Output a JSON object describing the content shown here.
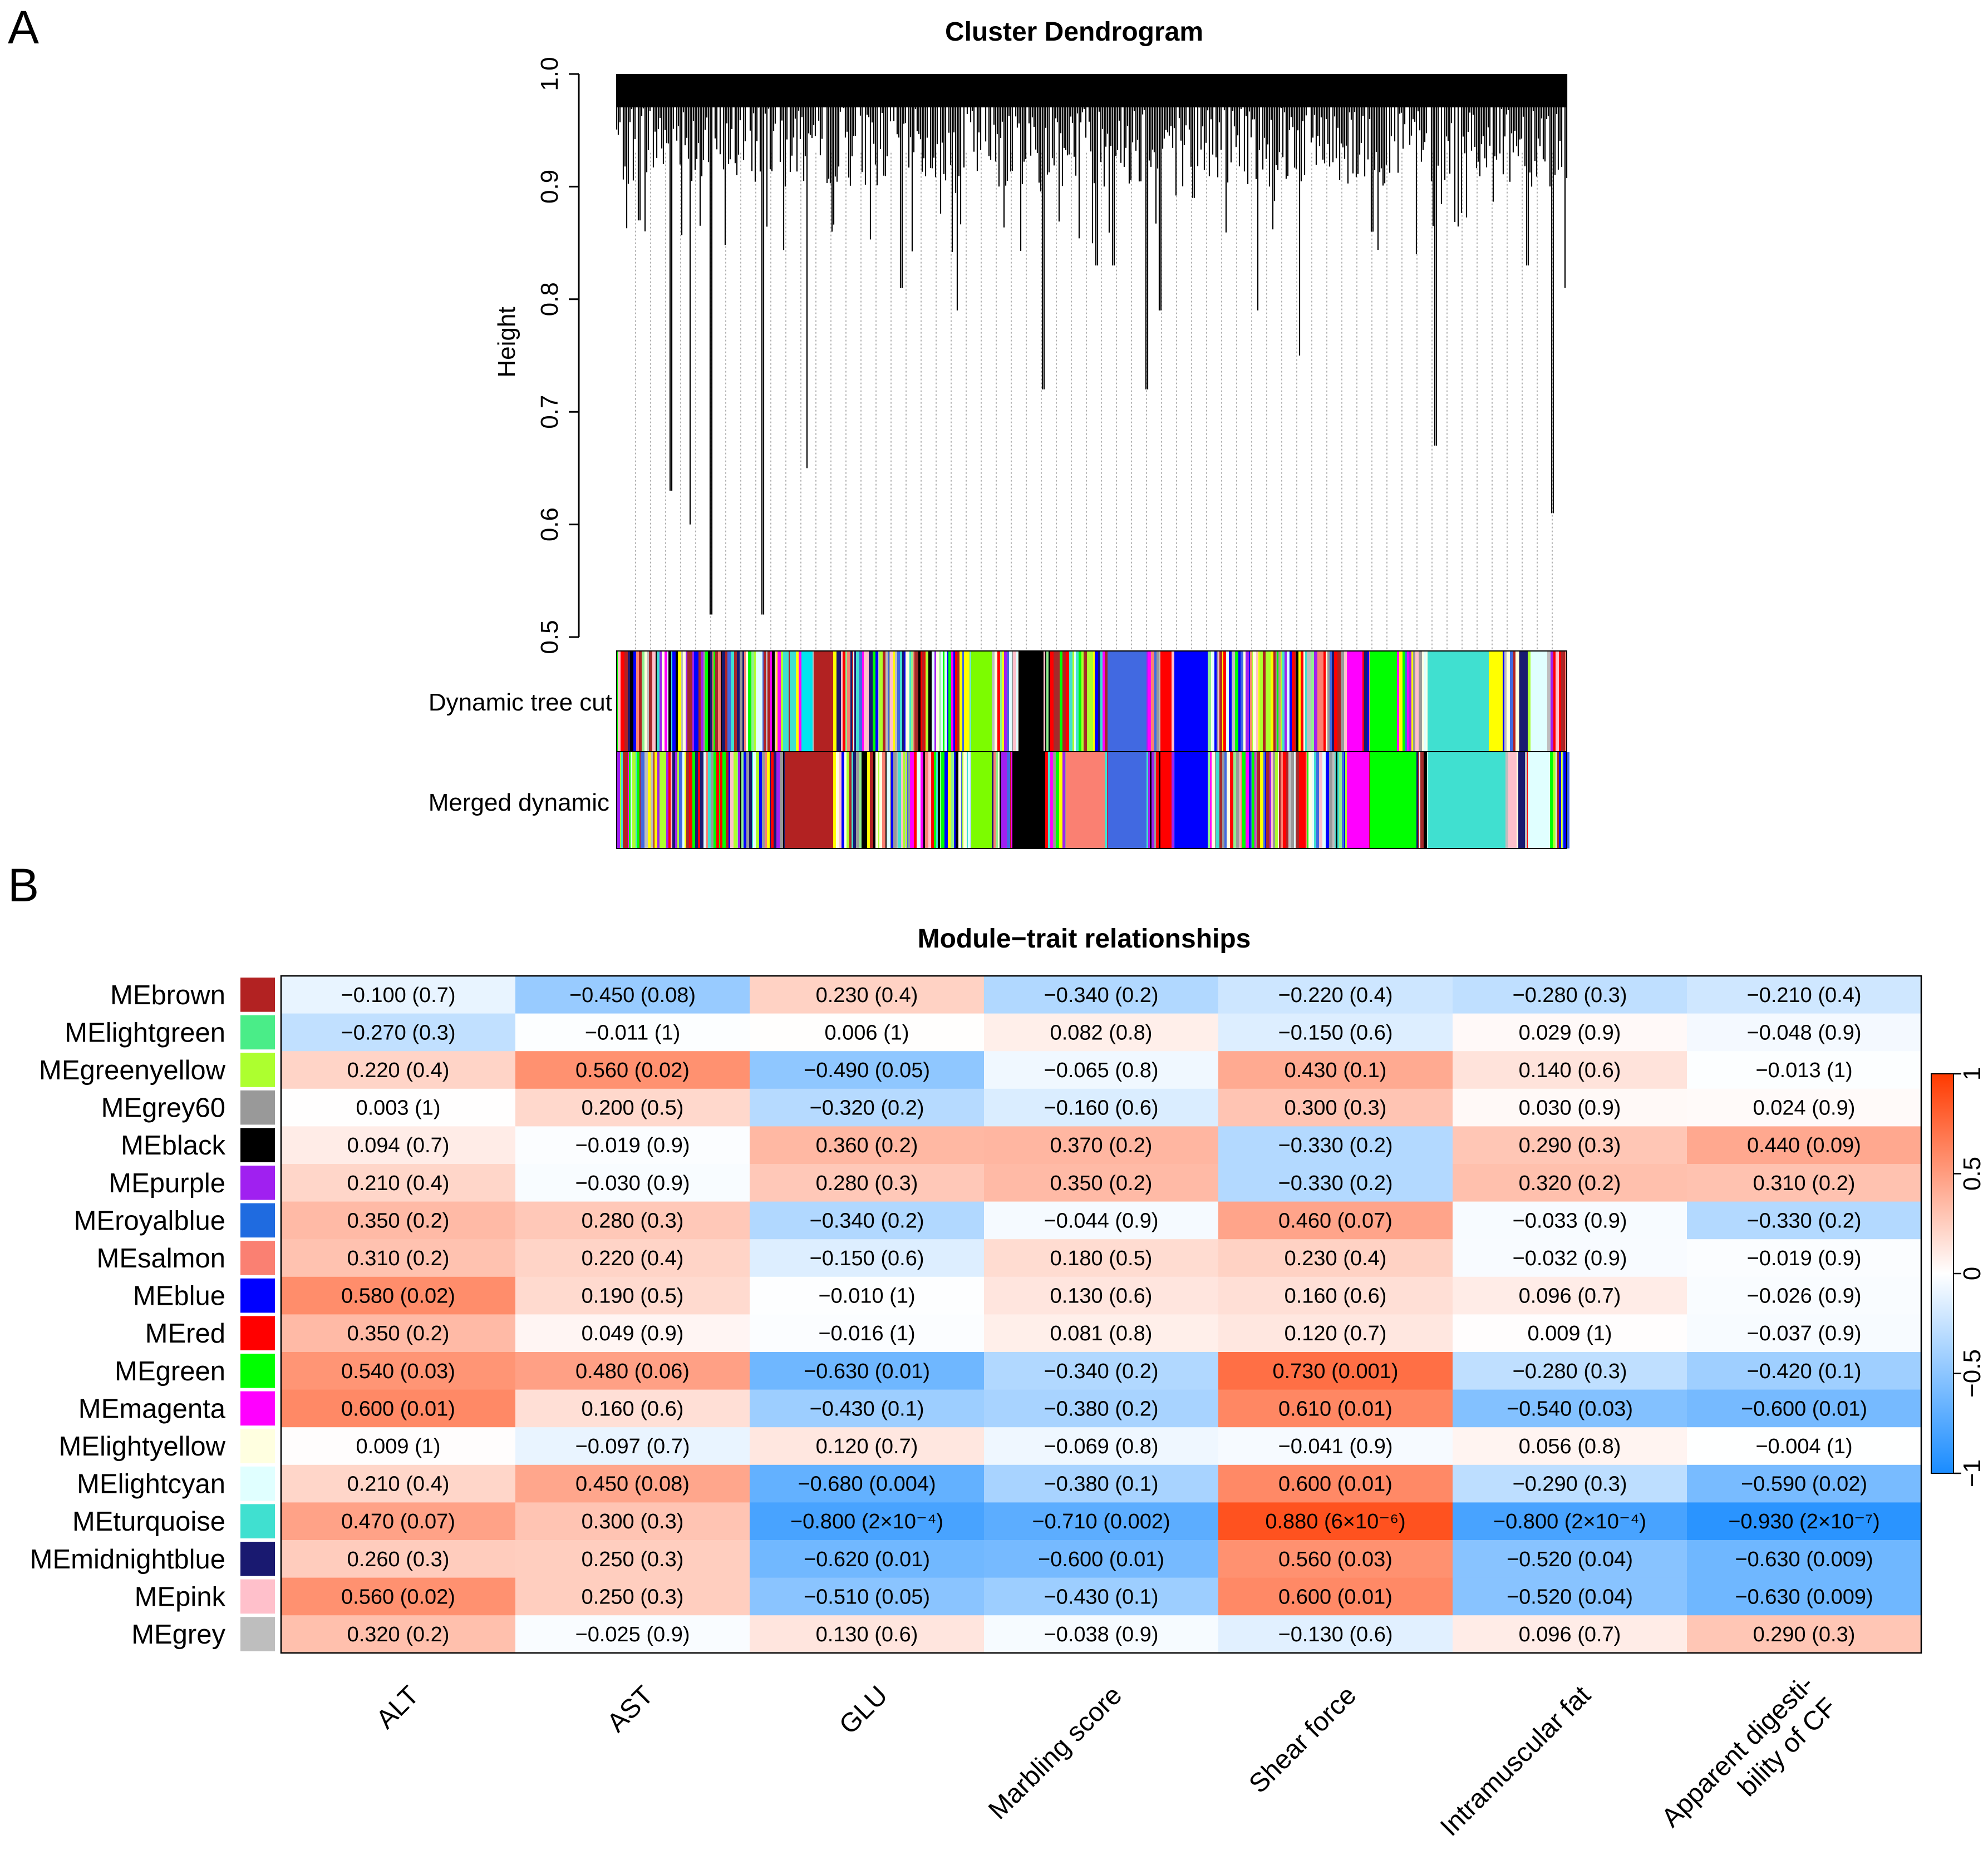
{
  "figure": {
    "panel_a_label": "A",
    "panel_b_label": "B"
  },
  "chart_data": [
    {
      "type": "dendrogram",
      "title": "Cluster Dendrogram",
      "ylabel": "Height",
      "ylim": [
        0.5,
        1.0
      ],
      "yticks": [
        "0.5",
        "0.6",
        "0.7",
        "0.8",
        "0.9",
        "1.0"
      ],
      "color_bar_labels": [
        "Dynamic tree cut",
        "Merged dynamic"
      ],
      "module_colors": [
        "#b22222",
        "#90ee90",
        "#adff2f",
        "#999999",
        "#000000",
        "#a020f0",
        "#4169e1",
        "#fa8072",
        "#0000ff",
        "#ff0000",
        "#00ff00",
        "#ff00ff",
        "#ffffe0",
        "#e0ffff",
        "#40e0d0",
        "#191970",
        "#ffc0cb",
        "#bebebe",
        "#ffff00",
        "#a52a2a"
      ]
    },
    {
      "type": "heatmap",
      "title": "Module−trait relationships",
      "rows": [
        "MEbrown",
        "MElightgreen",
        "MEgreenyellow",
        "MEgrey60",
        "MEblack",
        "MEpurple",
        "MEroyalblue",
        "MEsalmon",
        "MEblue",
        "MEred",
        "MEgreen",
        "MEmagenta",
        "MElightyellow",
        "MElightcyan",
        "MEturquoise",
        "MEmidnightblue",
        "MEpink",
        "MEgrey"
      ],
      "row_colors": [
        "#b22222",
        "#4aed88",
        "#adff2f",
        "#999999",
        "#000000",
        "#a020f0",
        "#1f6be0",
        "#fa8072",
        "#0000ff",
        "#ff0000",
        "#00ff00",
        "#ff00ff",
        "#ffffe0",
        "#e0ffff",
        "#40e0d0",
        "#191970",
        "#ffc0cb",
        "#bebebe"
      ],
      "columns": [
        "ALT",
        "AST",
        "GLU",
        "Marbling score",
        "Shear force",
        "Intramuscular fat",
        "Apparent digesti-|bility of CF"
      ],
      "values": [
        [
          -0.1,
          -0.45,
          0.23,
          -0.34,
          -0.22,
          -0.28,
          -0.21
        ],
        [
          -0.27,
          -0.011,
          0.006,
          0.082,
          -0.15,
          0.029,
          -0.048
        ],
        [
          0.22,
          0.56,
          -0.49,
          -0.065,
          0.43,
          0.14,
          -0.013
        ],
        [
          0.003,
          0.2,
          -0.32,
          -0.16,
          0.3,
          0.03,
          0.024
        ],
        [
          0.094,
          -0.019,
          0.36,
          0.37,
          -0.33,
          0.29,
          0.44
        ],
        [
          0.21,
          -0.03,
          0.28,
          0.35,
          -0.33,
          0.32,
          0.31
        ],
        [
          0.35,
          0.28,
          -0.34,
          -0.044,
          0.46,
          -0.033,
          -0.33
        ],
        [
          0.31,
          0.22,
          -0.15,
          0.18,
          0.23,
          -0.032,
          -0.019
        ],
        [
          0.58,
          0.19,
          -0.01,
          0.13,
          0.16,
          0.096,
          -0.026
        ],
        [
          0.35,
          0.049,
          -0.016,
          0.081,
          0.12,
          0.009,
          -0.037
        ],
        [
          0.54,
          0.48,
          -0.63,
          -0.34,
          0.73,
          -0.28,
          -0.42
        ],
        [
          0.6,
          0.16,
          -0.43,
          -0.38,
          0.61,
          -0.54,
          -0.6
        ],
        [
          0.009,
          -0.097,
          0.12,
          -0.069,
          -0.041,
          0.056,
          -0.004
        ],
        [
          0.21,
          0.45,
          -0.68,
          -0.38,
          0.6,
          -0.29,
          -0.59
        ],
        [
          0.47,
          0.3,
          -0.8,
          -0.71,
          0.88,
          -0.8,
          -0.93
        ],
        [
          0.26,
          0.25,
          -0.62,
          -0.6,
          0.56,
          -0.52,
          -0.63
        ],
        [
          0.56,
          0.25,
          -0.51,
          -0.43,
          0.6,
          -0.52,
          -0.63
        ],
        [
          0.32,
          -0.025,
          0.13,
          -0.038,
          -0.13,
          0.096,
          0.29
        ]
      ],
      "labels": [
        [
          "−0.100 (0.7)",
          "−0.450 (0.08)",
          "0.230 (0.4)",
          "−0.340 (0.2)",
          "−0.220 (0.4)",
          "−0.280 (0.3)",
          "−0.210 (0.4)"
        ],
        [
          "−0.270 (0.3)",
          "−0.011 (1)",
          "0.006 (1)",
          "0.082 (0.8)",
          "−0.150 (0.6)",
          "0.029 (0.9)",
          "−0.048 (0.9)"
        ],
        [
          "0.220 (0.4)",
          "0.560 (0.02)",
          "−0.490 (0.05)",
          "−0.065 (0.8)",
          "0.430 (0.1)",
          "0.140 (0.6)",
          "−0.013 (1)"
        ],
        [
          "0.003 (1)",
          "0.200 (0.5)",
          "−0.320 (0.2)",
          "−0.160 (0.6)",
          "0.300 (0.3)",
          "0.030 (0.9)",
          "0.024 (0.9)"
        ],
        [
          "0.094 (0.7)",
          "−0.019 (0.9)",
          "0.360 (0.2)",
          "0.370 (0.2)",
          "−0.330 (0.2)",
          "0.290 (0.3)",
          "0.440 (0.09)"
        ],
        [
          "0.210 (0.4)",
          "−0.030 (0.9)",
          "0.280 (0.3)",
          "0.350 (0.2)",
          "−0.330 (0.2)",
          "0.320 (0.2)",
          "0.310 (0.2)"
        ],
        [
          "0.350 (0.2)",
          "0.280 (0.3)",
          "−0.340 (0.2)",
          "−0.044 (0.9)",
          "0.460 (0.07)",
          "−0.033 (0.9)",
          "−0.330 (0.2)"
        ],
        [
          "0.310 (0.2)",
          "0.220 (0.4)",
          "−0.150 (0.6)",
          "0.180 (0.5)",
          "0.230 (0.4)",
          "−0.032 (0.9)",
          "−0.019 (0.9)"
        ],
        [
          "0.580 (0.02)",
          "0.190 (0.5)",
          "−0.010 (1)",
          "0.130 (0.6)",
          "0.160 (0.6)",
          "0.096 (0.7)",
          "−0.026 (0.9)"
        ],
        [
          "0.350 (0.2)",
          "0.049 (0.9)",
          "−0.016 (1)",
          "0.081 (0.8)",
          "0.120 (0.7)",
          "0.009 (1)",
          "−0.037 (0.9)"
        ],
        [
          "0.540 (0.03)",
          "0.480 (0.06)",
          "−0.630 (0.01)",
          "−0.340 (0.2)",
          "0.730 (0.001)",
          "−0.280 (0.3)",
          "−0.420 (0.1)"
        ],
        [
          "0.600 (0.01)",
          "0.160 (0.6)",
          "−0.430 (0.1)",
          "−0.380 (0.2)",
          "0.610 (0.01)",
          "−0.540 (0.03)",
          "−0.600 (0.01)"
        ],
        [
          "0.009 (1)",
          "−0.097 (0.7)",
          "0.120 (0.7)",
          "−0.069 (0.8)",
          "−0.041 (0.9)",
          "0.056 (0.8)",
          "−0.004 (1)"
        ],
        [
          "0.210 (0.4)",
          "0.450 (0.08)",
          "−0.680 (0.004)",
          "−0.380 (0.1)",
          "0.600 (0.01)",
          "−0.290 (0.3)",
          "−0.590 (0.02)"
        ],
        [
          "0.470 (0.07)",
          "0.300 (0.3)",
          "−0.800 (2×10⁻⁴)",
          "−0.710 (0.002)",
          "0.880 (6×10⁻⁶)",
          "−0.800 (2×10⁻⁴)",
          "−0.930 (2×10⁻⁷)"
        ],
        [
          "0.260 (0.3)",
          "0.250 (0.3)",
          "−0.620 (0.01)",
          "−0.600 (0.01)",
          "0.560 (0.03)",
          "−0.520 (0.04)",
          "−0.630 (0.009)"
        ],
        [
          "0.560 (0.02)",
          "0.250 (0.3)",
          "−0.510 (0.05)",
          "−0.430 (0.1)",
          "0.600 (0.01)",
          "−0.520 (0.04)",
          "−0.630 (0.009)"
        ],
        [
          "0.320 (0.2)",
          "−0.025 (0.9)",
          "0.130 (0.6)",
          "−0.038 (0.9)",
          "−0.130 (0.6)",
          "0.096 (0.7)",
          "0.290 (0.3)"
        ]
      ],
      "colorbar": {
        "range": [
          -1,
          1
        ],
        "ticks": [
          "−1",
          "−0.5",
          "0",
          "0.5",
          "1"
        ],
        "low_color": "#1a8cff",
        "mid_color": "#ffffff",
        "high_color": "#ff3a00"
      }
    }
  ]
}
